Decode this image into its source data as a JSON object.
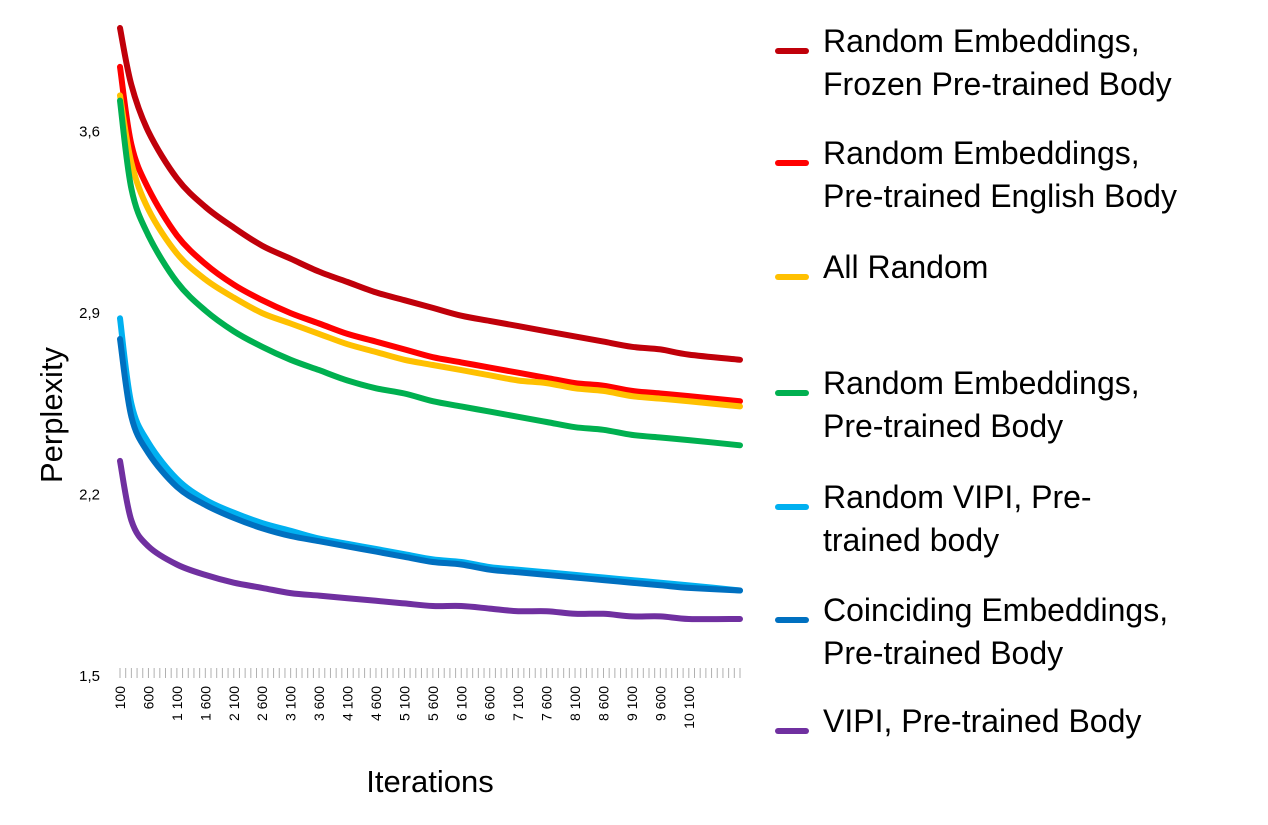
{
  "chart_data": {
    "type": "line",
    "title": "",
    "xlabel": "Iterations",
    "ylabel": "Perplexity",
    "xlim": [
      100,
      11000
    ],
    "ylim": [
      1.5,
      4.0
    ],
    "y_ticks": [
      1.5,
      2.2,
      2.9,
      3.6
    ],
    "y_tick_labels": [
      "1,5",
      "2,2",
      "2,9",
      "3,6"
    ],
    "x_tick_labels": [
      "100",
      "600",
      "1 100",
      "1 600",
      "2 100",
      "2 600",
      "3 100",
      "3 600",
      "4 100",
      "4 600",
      "5 100",
      "5 600",
      "6 100",
      "6 600",
      "7 100",
      "7 600",
      "8 100",
      "8 600",
      "9 100",
      "9 600",
      "10 100"
    ],
    "x_tick_values": [
      100,
      600,
      1100,
      1600,
      2100,
      2600,
      3100,
      3600,
      4100,
      4600,
      5100,
      5600,
      6100,
      6600,
      7100,
      7600,
      8100,
      8600,
      9100,
      9600,
      10100
    ],
    "grid": false,
    "legend_position": "right",
    "x": [
      100,
      300,
      600,
      1100,
      1600,
      2100,
      2600,
      3100,
      3600,
      4100,
      4600,
      5100,
      5600,
      6100,
      6600,
      7100,
      7600,
      8100,
      8600,
      9100,
      9600,
      10100,
      11000
    ],
    "series": [
      {
        "name": "Random Embeddings, Frozen Pre-trained Body",
        "label_lines": [
          "Random Embeddings,",
          "Frozen Pre-trained Body"
        ],
        "color": "#c0000a",
        "values": [
          4.0,
          3.78,
          3.6,
          3.42,
          3.31,
          3.23,
          3.16,
          3.11,
          3.06,
          3.02,
          2.98,
          2.95,
          2.92,
          2.89,
          2.87,
          2.85,
          2.83,
          2.81,
          2.79,
          2.77,
          2.76,
          2.74,
          2.72
        ]
      },
      {
        "name": "Random Embeddings, Pre-trained English Body",
        "label_lines": [
          "Random Embeddings,",
          "Pre-trained English Body"
        ],
        "color": "#ff0000",
        "values": [
          3.85,
          3.55,
          3.38,
          3.2,
          3.09,
          3.01,
          2.95,
          2.9,
          2.86,
          2.82,
          2.79,
          2.76,
          2.73,
          2.71,
          2.69,
          2.67,
          2.65,
          2.63,
          2.62,
          2.6,
          2.59,
          2.58,
          2.56
        ]
      },
      {
        "name": "All Random",
        "label_lines": [
          "All Random"
        ],
        "color": "#ffc000",
        "values": [
          3.74,
          3.48,
          3.3,
          3.13,
          3.03,
          2.96,
          2.9,
          2.86,
          2.82,
          2.78,
          2.75,
          2.72,
          2.7,
          2.68,
          2.66,
          2.64,
          2.63,
          2.61,
          2.6,
          2.58,
          2.57,
          2.56,
          2.54
        ]
      },
      {
        "name": "Random Embeddings, Pre-trained Body",
        "label_lines": [
          "Random Embeddings,",
          "Pre-trained Body"
        ],
        "color": "#00b050",
        "values": [
          3.72,
          3.38,
          3.2,
          3.02,
          2.91,
          2.83,
          2.77,
          2.72,
          2.68,
          2.64,
          2.61,
          2.59,
          2.56,
          2.54,
          2.52,
          2.5,
          2.48,
          2.46,
          2.45,
          2.43,
          2.42,
          2.41,
          2.39
        ]
      },
      {
        "name": "Random VIPI, Pre-trained body",
        "label_lines": [
          "Random VIPI, Pre-",
          "trained body"
        ],
        "color": "#00b0f0",
        "values": [
          2.88,
          2.55,
          2.4,
          2.26,
          2.18,
          2.13,
          2.09,
          2.06,
          2.03,
          2.01,
          1.99,
          1.97,
          1.95,
          1.94,
          1.92,
          1.91,
          1.9,
          1.89,
          1.88,
          1.87,
          1.86,
          1.85,
          1.83
        ]
      },
      {
        "name": "Coinciding Embeddings, Pre-trained Body",
        "label_lines": [
          "Coinciding Embeddings,",
          "Pre-trained Body"
        ],
        "color": "#0070c0",
        "values": [
          2.8,
          2.5,
          2.36,
          2.23,
          2.16,
          2.11,
          2.07,
          2.04,
          2.02,
          2.0,
          1.98,
          1.96,
          1.94,
          1.93,
          1.91,
          1.9,
          1.89,
          1.88,
          1.87,
          1.86,
          1.85,
          1.84,
          1.83
        ]
      },
      {
        "name": "VIPI, Pre-trained Body",
        "label_lines": [
          "VIPI, Pre-trained Body"
        ],
        "color": "#7030a0",
        "values": [
          2.33,
          2.1,
          2.0,
          1.93,
          1.89,
          1.86,
          1.84,
          1.82,
          1.81,
          1.8,
          1.79,
          1.78,
          1.77,
          1.77,
          1.76,
          1.75,
          1.75,
          1.74,
          1.74,
          1.73,
          1.73,
          1.72,
          1.72
        ]
      }
    ]
  }
}
